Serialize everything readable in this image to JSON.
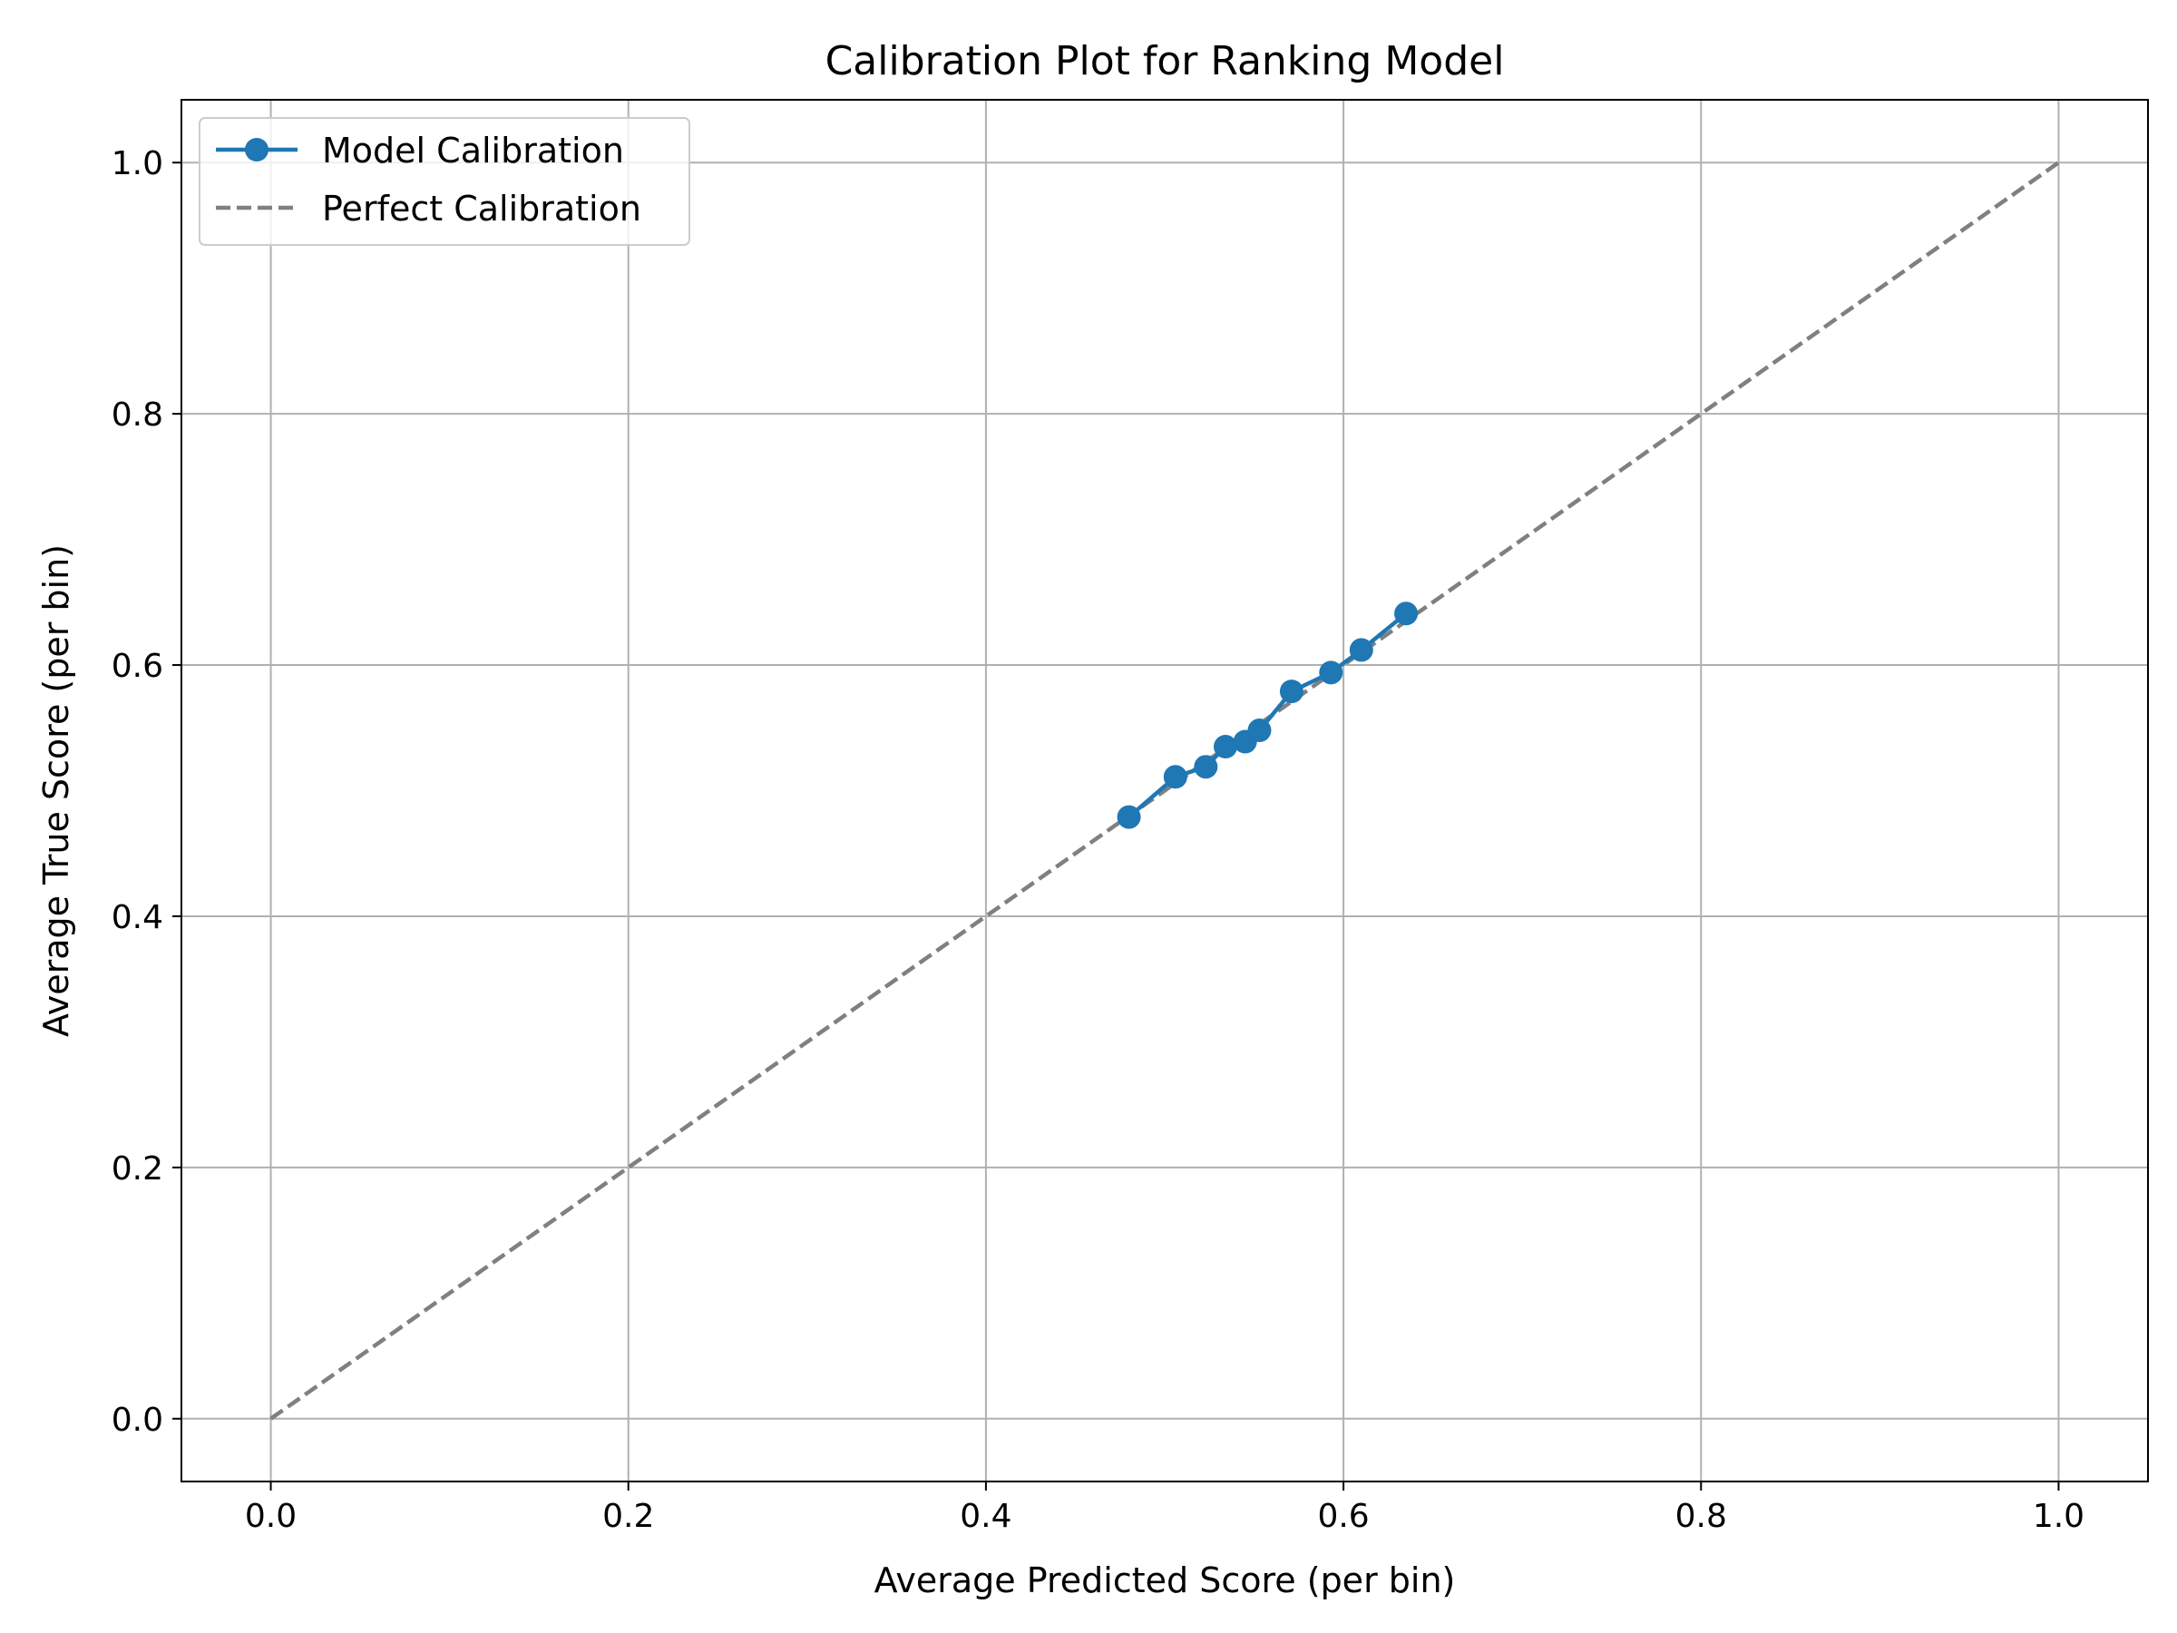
{
  "chart_data": {
    "type": "line",
    "title": "Calibration Plot for Ranking Model",
    "xlabel": "Average Predicted Score (per bin)",
    "ylabel": "Average True Score (per bin)",
    "xlim": [
      -0.05,
      1.05
    ],
    "ylim": [
      -0.05,
      1.05
    ],
    "xticks": [
      0.0,
      0.2,
      0.4,
      0.6,
      0.8,
      1.0
    ],
    "yticks": [
      0.0,
      0.2,
      0.4,
      0.6,
      0.8,
      1.0
    ],
    "xtick_labels": [
      "0.0",
      "0.2",
      "0.4",
      "0.6",
      "0.8",
      "1.0"
    ],
    "ytick_labels": [
      "0.0",
      "0.2",
      "0.4",
      "0.6",
      "0.8",
      "1.0"
    ],
    "grid": true,
    "legend_position": "top-left",
    "series": [
      {
        "name": "Model Calibration",
        "style": "solid-with-markers",
        "color": "#1f77b4",
        "x": [
          0.48,
          0.506,
          0.523,
          0.534,
          0.545,
          0.553,
          0.571,
          0.593,
          0.61,
          0.635
        ],
        "y": [
          0.479,
          0.511,
          0.519,
          0.535,
          0.539,
          0.548,
          0.579,
          0.594,
          0.612,
          0.641
        ]
      },
      {
        "name": "Perfect Calibration",
        "style": "dashed",
        "color": "#808080",
        "x": [
          0.0,
          1.0
        ],
        "y": [
          0.0,
          1.0
        ]
      }
    ]
  }
}
